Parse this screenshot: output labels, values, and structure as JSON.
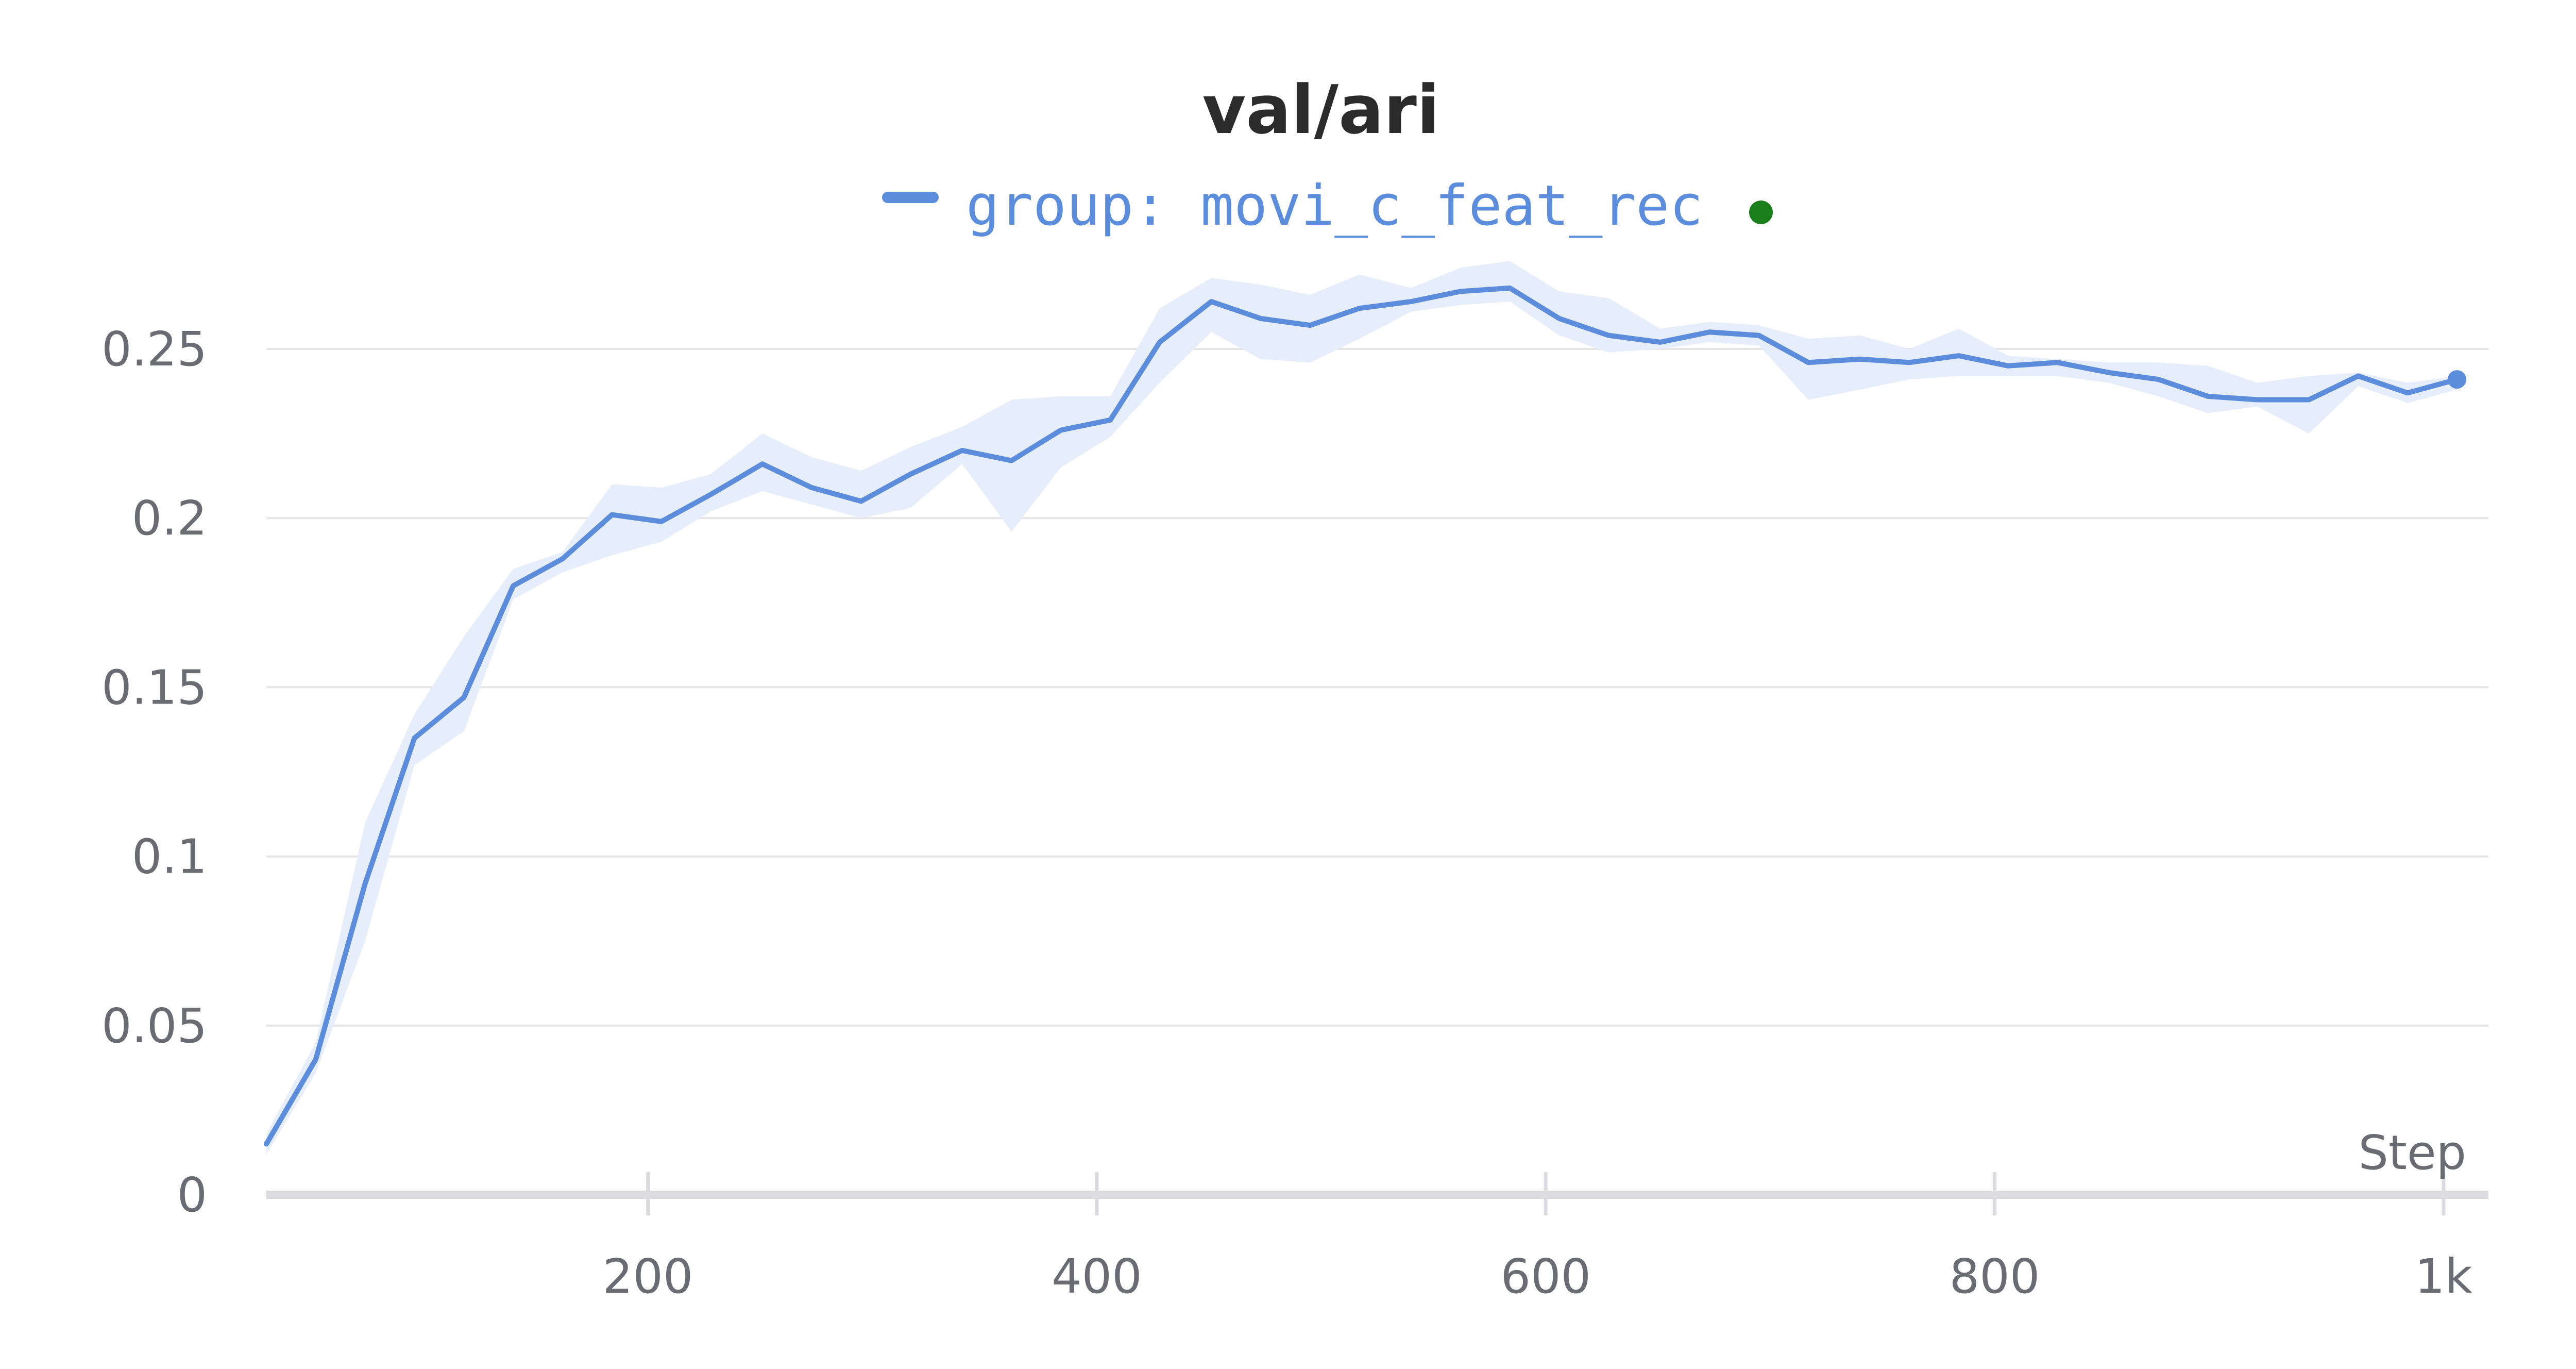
{
  "chart_data": {
    "type": "line",
    "title": "val/ari",
    "xlabel": "Step",
    "ylabel": "",
    "xlim": [
      30,
      1020
    ],
    "ylim": [
      0,
      0.275
    ],
    "x_ticks": [
      200,
      400,
      600,
      800,
      1000
    ],
    "x_tick_labels": [
      "200",
      "400",
      "600",
      "800",
      "1k"
    ],
    "y_ticks": [
      0,
      0.05,
      0.1,
      0.15,
      0.2,
      0.25
    ],
    "y_tick_labels": [
      "0",
      "0.05",
      "0.1",
      "0.15",
      "0.2",
      "0.25"
    ],
    "grid": true,
    "legend_position": "top-center",
    "series": [
      {
        "name": "group: movi_c_feat_rec",
        "color": "#5b8ddc",
        "band_color": "#e6eefb",
        "status_color": "#1a7f1a",
        "x": [
          30,
          52,
          74,
          96,
          118,
          140,
          162,
          184,
          206,
          228,
          251,
          273,
          295,
          317,
          340,
          362,
          384,
          406,
          428,
          451,
          473,
          495,
          517,
          540,
          562,
          584,
          606,
          628,
          651,
          673,
          695,
          717,
          740,
          762,
          784,
          806,
          828,
          851,
          873,
          895,
          917,
          940,
          962,
          984,
          1006
        ],
        "values": [
          0.015,
          0.04,
          0.092,
          0.135,
          0.147,
          0.18,
          0.188,
          0.201,
          0.199,
          0.207,
          0.216,
          0.209,
          0.205,
          0.213,
          0.22,
          0.217,
          0.226,
          0.229,
          0.252,
          0.264,
          0.259,
          0.257,
          0.262,
          0.264,
          0.267,
          0.268,
          0.259,
          0.254,
          0.252,
          0.255,
          0.254,
          0.246,
          0.247,
          0.246,
          0.248,
          0.245,
          0.246,
          0.243,
          0.241,
          0.236,
          0.235,
          0.235,
          0.242,
          0.237,
          0.241
        ],
        "upper": [
          0.018,
          0.045,
          0.11,
          0.142,
          0.165,
          0.185,
          0.19,
          0.21,
          0.209,
          0.213,
          0.225,
          0.218,
          0.214,
          0.221,
          0.227,
          0.235,
          0.236,
          0.236,
          0.262,
          0.271,
          0.269,
          0.266,
          0.272,
          0.268,
          0.274,
          0.276,
          0.267,
          0.265,
          0.256,
          0.258,
          0.257,
          0.253,
          0.254,
          0.25,
          0.256,
          0.248,
          0.247,
          0.246,
          0.246,
          0.245,
          0.24,
          0.242,
          0.243,
          0.24,
          0.242
        ],
        "lower": [
          0.012,
          0.036,
          0.075,
          0.127,
          0.137,
          0.176,
          0.184,
          0.189,
          0.193,
          0.202,
          0.208,
          0.204,
          0.2,
          0.203,
          0.216,
          0.196,
          0.215,
          0.224,
          0.24,
          0.255,
          0.247,
          0.246,
          0.253,
          0.261,
          0.263,
          0.264,
          0.254,
          0.249,
          0.25,
          0.252,
          0.251,
          0.235,
          0.238,
          0.241,
          0.242,
          0.242,
          0.242,
          0.24,
          0.236,
          0.231,
          0.233,
          0.225,
          0.239,
          0.234,
          0.238
        ]
      }
    ]
  }
}
